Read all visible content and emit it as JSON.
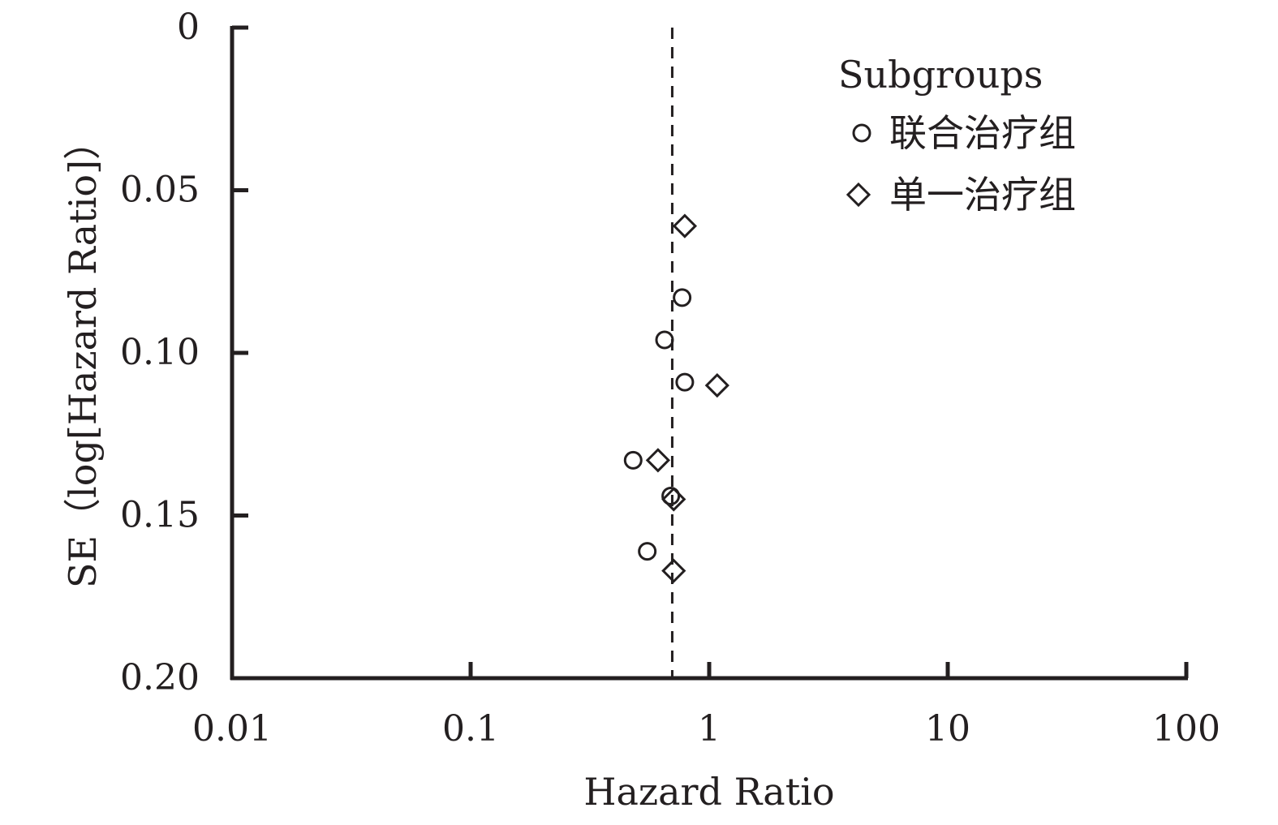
{
  "chart_data": {
    "type": "scatter",
    "title": "",
    "xlabel": "Hazard Ratio",
    "ylabel": "SE（log[Hazard Ratio]）",
    "x_scale": "log",
    "xlim": [
      0.01,
      100
    ],
    "ylim": [
      0,
      0.2
    ],
    "y_inverted": true,
    "x_ticks": [
      {
        "value": 0.01,
        "label": "0.01"
      },
      {
        "value": 0.1,
        "label": "0.1"
      },
      {
        "value": 1,
        "label": "1"
      },
      {
        "value": 10,
        "label": "10"
      },
      {
        "value": 100,
        "label": "100"
      }
    ],
    "y_ticks": [
      {
        "value": 0,
        "label": "0"
      },
      {
        "value": 0.05,
        "label": "0.05"
      },
      {
        "value": 0.1,
        "label": "0.10"
      },
      {
        "value": 0.15,
        "label": "0.15"
      },
      {
        "value": 0.2,
        "label": "0.20"
      }
    ],
    "reference_line": {
      "x": 0.7,
      "style": "dashed"
    },
    "grid": false,
    "legend": {
      "title": "Subgroups",
      "position": "top-right"
    },
    "series": [
      {
        "name": "联合治疗组",
        "marker": "circle",
        "points": [
          {
            "x": 0.77,
            "y": 0.083
          },
          {
            "x": 0.65,
            "y": 0.096
          },
          {
            "x": 0.79,
            "y": 0.109
          },
          {
            "x": 0.48,
            "y": 0.133
          },
          {
            "x": 0.69,
            "y": 0.144
          },
          {
            "x": 0.55,
            "y": 0.161
          }
        ]
      },
      {
        "name": "单一治疗组",
        "marker": "diamond",
        "points": [
          {
            "x": 0.79,
            "y": 0.061
          },
          {
            "x": 1.08,
            "y": 0.11
          },
          {
            "x": 0.61,
            "y": 0.133
          },
          {
            "x": 0.71,
            "y": 0.145
          },
          {
            "x": 0.71,
            "y": 0.167
          }
        ]
      }
    ]
  }
}
